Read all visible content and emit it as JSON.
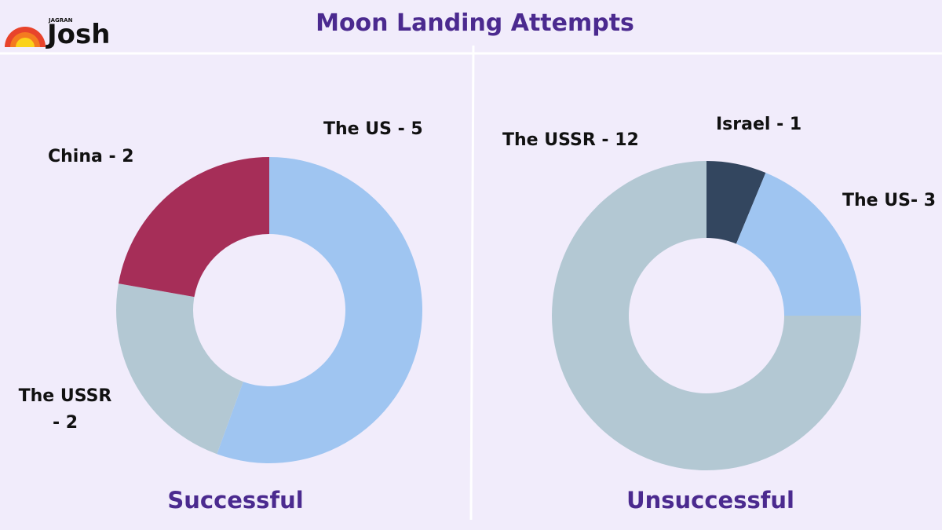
{
  "title": "Moon Landing Attempts",
  "logo": {
    "small": "JAGRAN",
    "main": "Josh"
  },
  "chart_data": [
    {
      "type": "donut",
      "title": "Successful",
      "labels": [
        "The US - 5",
        "The USSR - 2",
        "China - 2"
      ],
      "values": [
        5,
        2,
        2
      ],
      "colors": [
        "#9fc5f1",
        "#b3c8d3",
        "#a62e58"
      ]
    },
    {
      "type": "donut",
      "title": "Unsuccessful",
      "labels": [
        "Israel - 1",
        "The US- 3",
        "The USSR - 12"
      ],
      "values": [
        1,
        3,
        12
      ],
      "colors": [
        "#33465f",
        "#9fc5f1",
        "#b3c8d3"
      ]
    }
  ]
}
